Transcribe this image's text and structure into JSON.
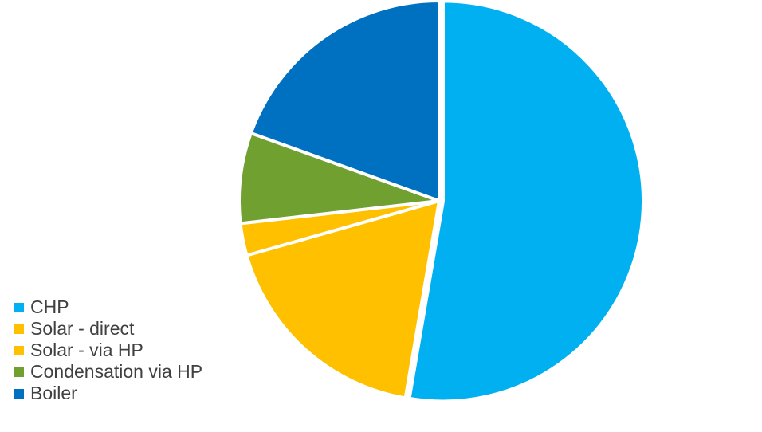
{
  "chart_data": {
    "type": "pie",
    "title": "",
    "categories": [
      "CHP",
      "Solar - direct",
      "Solar - via HP",
      "Condensation via HP",
      "Boiler"
    ],
    "values": [
      52.7,
      17.9,
      2.6,
      7.3,
      19.5
    ],
    "colors": [
      "#00B0F0",
      "#FFC000",
      "#FFC000",
      "#70A030",
      "#0070C0"
    ],
    "legend_position": "left-bottom",
    "start_angle_deg": 0,
    "direction": "clockwise"
  }
}
